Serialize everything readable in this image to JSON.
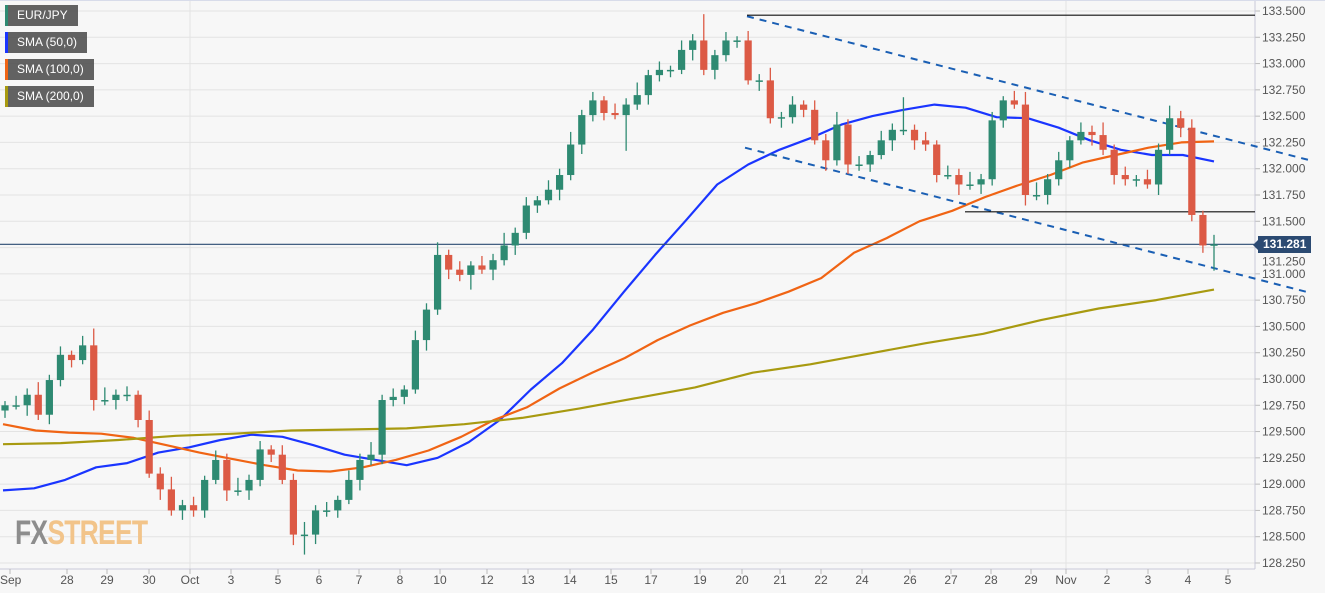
{
  "legend": [
    {
      "label": "EUR/JPY",
      "color": "#2e8a72"
    },
    {
      "label": "SMA (50,0)",
      "color": "#1a35ff"
    },
    {
      "label": "SMA (100,0)",
      "color": "#f06414"
    },
    {
      "label": "SMA (200,0)",
      "color": "#a89a10"
    }
  ],
  "logo": {
    "part1": "FX",
    "part2": "STREET"
  },
  "current_price": "131.281",
  "chart_data": {
    "type": "candlestick",
    "symbol": "EUR/JPY",
    "ylim": [
      128.25,
      133.5
    ],
    "y_ticks": [
      "133.500",
      "133.250",
      "133.000",
      "132.750",
      "132.500",
      "132.250",
      "132.000",
      "131.750",
      "131.500",
      "131.250",
      "131.000",
      "130.750",
      "130.500",
      "130.250",
      "130.000",
      "129.750",
      "129.500",
      "129.250",
      "129.000",
      "128.750",
      "128.500",
      "128.250"
    ],
    "x_ticks": [
      "Sep",
      "28",
      "29",
      "30",
      "Oct",
      "3",
      "5",
      "6",
      "7",
      "8",
      "10",
      "12",
      "13",
      "14",
      "15",
      "17",
      "19",
      "20",
      "21",
      "22",
      "24",
      "26",
      "27",
      "28",
      "29",
      "Nov",
      "2",
      "3",
      "4",
      "5"
    ],
    "colors": {
      "up": "#2e8a72",
      "down": "#dc5a45"
    },
    "first_open": 129.7,
    "closes": [
      129.75,
      129.75,
      129.85,
      129.66,
      129.99,
      130.23,
      130.18,
      130.32,
      129.8,
      129.8,
      129.85,
      129.85,
      129.61,
      129.1,
      128.95,
      128.75,
      128.8,
      128.75,
      129.04,
      129.23,
      128.94,
      128.94,
      129.04,
      129.33,
      129.28,
      129.04,
      128.52,
      128.52,
      128.75,
      128.75,
      128.85,
      129.04,
      129.23,
      129.28,
      129.8,
      129.83,
      129.9,
      130.37,
      130.66,
      131.18,
      131.04,
      130.99,
      131.08,
      131.04,
      131.13,
      131.27,
      131.39,
      131.65,
      131.7,
      131.8,
      131.94,
      132.23,
      132.51,
      132.65,
      132.53,
      132.51,
      132.61,
      132.7,
      132.89,
      132.94,
      132.94,
      133.13,
      133.22,
      132.94,
      133.08,
      133.22,
      133.22,
      132.84,
      132.84,
      132.48,
      132.49,
      132.61,
      132.56,
      132.27,
      132.08,
      132.42,
      132.04,
      132.04,
      132.13,
      132.27,
      132.37,
      132.37,
      132.27,
      132.23,
      131.94,
      131.94,
      131.85,
      131.85,
      131.9,
      132.46,
      132.65,
      132.61,
      131.75,
      131.75,
      131.9,
      132.08,
      132.27,
      132.35,
      132.32,
      132.18,
      131.94,
      131.9,
      131.9,
      131.85,
      132.18,
      132.48,
      132.39,
      131.56,
      131.27,
      131.281
    ],
    "wick_extremes": {
      "8": {
        "high": 130.48
      },
      "27": {
        "low": 128.33
      },
      "42": {
        "low": 130.85
      },
      "56": {
        "low": 132.17
      },
      "63": {
        "high": 133.47
      },
      "81": {
        "high": 132.68
      },
      "92": {
        "high": 132.73
      },
      "106": {
        "high": 132.55
      },
      "109": {
        "low": 131.03
      }
    },
    "series": [
      {
        "name": "SMA (50,0)",
        "color": "#1a35ff",
        "values": [
          128.94,
          128.96,
          129.04,
          129.16,
          129.2,
          129.3,
          129.35,
          129.42,
          129.47,
          129.45,
          129.37,
          129.28,
          129.23,
          129.18,
          129.25,
          129.4,
          129.61,
          129.9,
          130.15,
          130.47,
          130.83,
          131.18,
          131.51,
          131.85,
          132.04,
          132.18,
          132.29,
          132.42,
          132.5,
          132.56,
          132.61,
          132.58,
          132.49,
          132.48,
          132.39,
          132.27,
          132.18,
          132.13,
          132.13,
          132.07
        ]
      },
      {
        "name": "SMA (100,0)",
        "color": "#f06414",
        "values": [
          129.57,
          129.51,
          129.49,
          129.48,
          129.44,
          129.37,
          129.3,
          129.24,
          129.18,
          129.13,
          129.12,
          129.16,
          129.23,
          129.32,
          129.45,
          129.61,
          129.73,
          129.91,
          130.06,
          130.2,
          130.37,
          130.51,
          130.63,
          130.72,
          130.83,
          130.96,
          131.2,
          131.34,
          131.5,
          131.6,
          131.73,
          131.84,
          131.94,
          132.06,
          132.13,
          132.2,
          132.25,
          132.26
        ]
      },
      {
        "name": "SMA (200,0)",
        "color": "#a89a10",
        "values": [
          129.38,
          129.39,
          129.42,
          129.46,
          129.48,
          129.51,
          129.52,
          129.53,
          129.57,
          129.63,
          129.72,
          129.82,
          129.92,
          130.06,
          130.14,
          130.24,
          130.34,
          130.43,
          130.56,
          130.67,
          130.75,
          130.85
        ]
      }
    ],
    "annotations": {
      "upper_channel": [
        133.45,
        132.08
      ],
      "lower_channel": [
        132.2,
        130.82
      ],
      "resistance_line": 133.46,
      "support_line": 131.59,
      "last_price": 131.281
    }
  }
}
